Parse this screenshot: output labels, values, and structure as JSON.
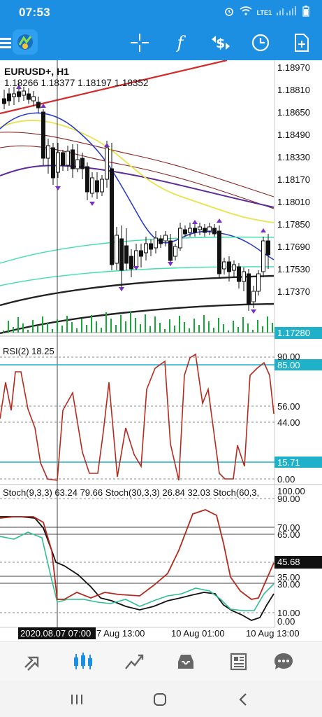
{
  "status_bar": {
    "time": "07:53",
    "network": "LTE1"
  },
  "toolbar": {
    "icons": [
      "menu-icon",
      "app-logo",
      "crosshair-icon",
      "indicators-icon",
      "trade-icon",
      "timeframe-icon",
      "add-object-icon"
    ]
  },
  "chart": {
    "symbol_label": "EURUSD+, H1",
    "ohlc_label": "1.18266 1.18377 1.18197 1.18352",
    "price_ticks": [
      "1.18970",
      "1.18810",
      "1.18650",
      "1.18490",
      "1.18330",
      "1.18170",
      "1.18010",
      "1.17850",
      "1.17690",
      "1.17530",
      "1.17370"
    ],
    "current_price": "1.17280",
    "colors": {
      "price_tag": "#1fb1c9",
      "bull_ma": "#e8e34a",
      "fast_ma": "#2b3dc9",
      "mid_ma": "#5a2c9c",
      "teal_ma": "#3ee0a6",
      "volumes": "#18a83a",
      "trend_line": "#d42a2a",
      "arrow": "#7a2ec5"
    }
  },
  "rsi": {
    "label": "RSI(2) 18.25",
    "levels": [
      "90.00",
      "85.00",
      "56.00",
      "44.00",
      "15.71",
      "0.00"
    ],
    "color": "#b52a1e"
  },
  "stoch": {
    "label": "Stoch(9,3,3) 63.24 79.66 Stoch(30,3,3) 26.84 32.03 Stoch(60,3,",
    "levels": [
      "100.00",
      "90.00",
      "70.00",
      "65.00",
      "45.68",
      "35.00",
      "30.00",
      "10.00",
      "0.00"
    ]
  },
  "time_axis": {
    "crosshair_label": "2020.08.07 07:00",
    "labels": [
      "7 Aug 13:00",
      "10 Aug 01:00",
      "10 Aug 13:00"
    ]
  },
  "bottom_nav": [
    "quotes-icon",
    "chart-icon",
    "trade-icon",
    "history-icon",
    "news-icon",
    "messages-icon"
  ],
  "system_nav": [
    "recent-apps-icon",
    "home-icon",
    "back-icon"
  ]
}
